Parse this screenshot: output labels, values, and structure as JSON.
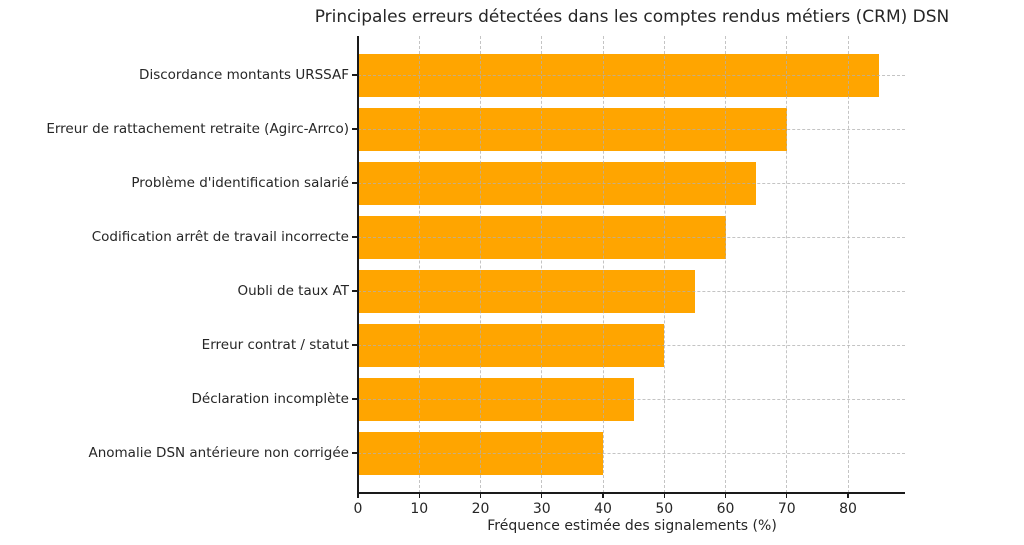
{
  "chart_data": {
    "type": "bar",
    "orientation": "horizontal",
    "title": "Principales erreurs détectées dans les comptes rendus métiers (CRM) DSN",
    "xlabel": "Fréquence estimée des signalements (%)",
    "ylabel": "",
    "categories": [
      "Discordance montants URSSAF",
      "Erreur de rattachement retraite (Agirc-Arrco)",
      "Problème d'identification salarié",
      "Codification arrêt de travail incorrecte",
      "Oubli de taux AT",
      "Erreur contrat / statut",
      "Déclaration incomplète",
      "Anomalie DSN antérieure non corrigée"
    ],
    "values": [
      85,
      70,
      65,
      60,
      55,
      50,
      45,
      40
    ],
    "xlim": [
      0,
      89.3
    ],
    "xticks": [
      0,
      10,
      20,
      30,
      40,
      50,
      60,
      70,
      80
    ],
    "grid": true,
    "grid_style": "dashed",
    "grid_axisbelow": false,
    "legend_position": "none",
    "bar_color": "#FFA500",
    "background_color": "#FFFFFF",
    "text_color": "#262626",
    "grid_color": "#B0B0B0"
  }
}
